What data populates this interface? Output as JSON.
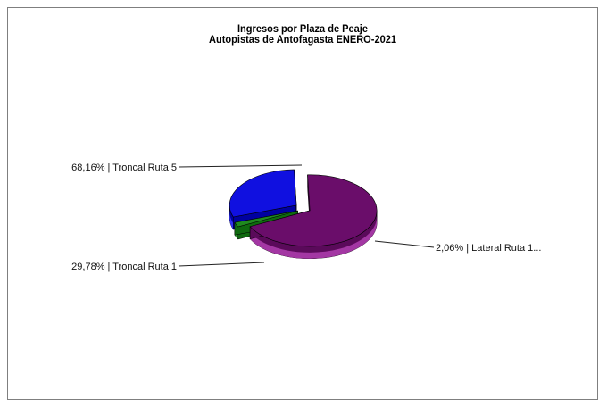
{
  "chart_data": {
    "type": "pie",
    "title": "Ingresos por Plaza de Peaje",
    "subtitle": "Autopistas de Antofagasta ENERO-2021",
    "slices": [
      {
        "label": "68,16% | Troncal Ruta 5",
        "value": 68.16,
        "color": "#6a0d6a",
        "side": "#5a0a5a",
        "rim": "#b040b0"
      },
      {
        "label": "2,06% | Lateral Ruta 1...",
        "value": 2.06,
        "color": "#1f8a1f",
        "side": "#0f6a0f",
        "rim": "#3cbf3c"
      },
      {
        "label": "29,78% | Troncal Ruta 1",
        "value": 29.78,
        "color": "#1010e0",
        "side": "#0000a0",
        "rim": "#3a3aff"
      }
    ],
    "legend": "none"
  }
}
